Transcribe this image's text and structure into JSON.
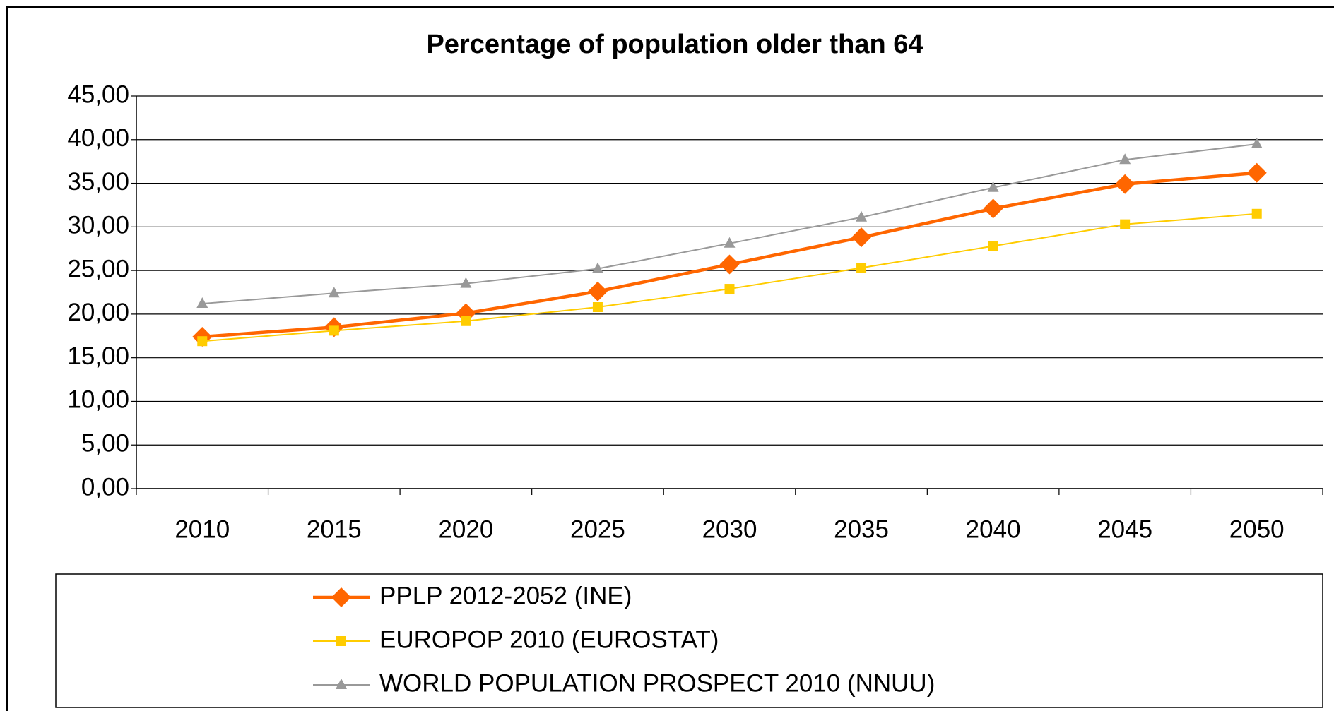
{
  "chart_data": {
    "type": "line",
    "title": "Percentage of population older than 64",
    "categories": [
      "2010",
      "2015",
      "2020",
      "2025",
      "2030",
      "2035",
      "2040",
      "2045",
      "2050"
    ],
    "series": [
      {
        "name": "PPLP 2012-2052 (INE)",
        "color": "#ff6600",
        "marker": "diamond",
        "values": [
          17.4,
          18.5,
          20.1,
          22.6,
          25.7,
          28.8,
          32.1,
          34.9,
          36.2
        ]
      },
      {
        "name": "EUROPOP 2010 (EUROSTAT)",
        "color": "#ffcc00",
        "marker": "square",
        "values": [
          16.9,
          18.1,
          19.2,
          20.8,
          22.9,
          25.3,
          27.8,
          30.3,
          31.5
        ]
      },
      {
        "name": "WORLD POPULATION PROSPECT 2010 (NNUU)",
        "color": "#999999",
        "marker": "triangle",
        "values": [
          21.2,
          22.4,
          23.5,
          25.2,
          28.1,
          31.1,
          34.5,
          37.7,
          39.5
        ]
      }
    ],
    "ylim": [
      0,
      45
    ],
    "yticks": [
      {
        "value": 0,
        "label": "0,00"
      },
      {
        "value": 5,
        "label": "5,00"
      },
      {
        "value": 10,
        "label": "10,00"
      },
      {
        "value": 15,
        "label": "15,00"
      },
      {
        "value": 20,
        "label": "20,00"
      },
      {
        "value": 25,
        "label": "25,00"
      },
      {
        "value": 30,
        "label": "30,00"
      },
      {
        "value": 35,
        "label": "35,00"
      },
      {
        "value": 40,
        "label": "40,00"
      },
      {
        "value": 45,
        "label": "45,00"
      }
    ],
    "grid": true,
    "legend": "bottom"
  }
}
